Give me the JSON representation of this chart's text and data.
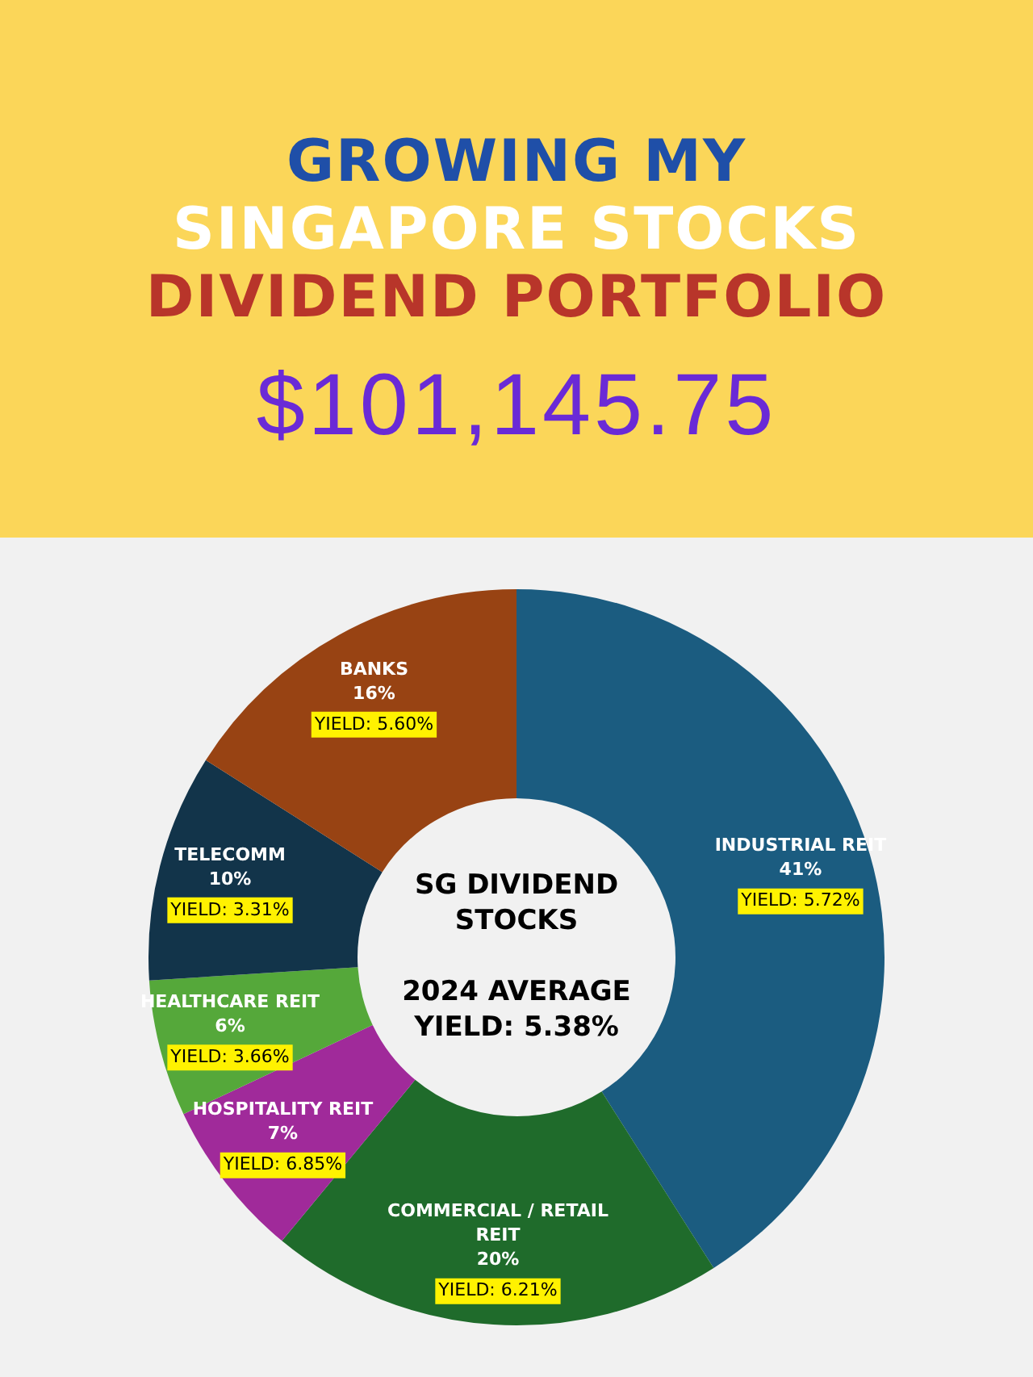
{
  "chart_data": {
    "type": "donut",
    "title": "GROWING MY\nSINGAPORE STOCKS\nDIVIDEND PORTFOLIO",
    "subtitle": "$101,145.75",
    "categories": [
      "INDUSTRIAL REIT",
      "COMMERCIAL / RETAIL REIT",
      "HOSPITALITY REIT",
      "HEALTHCARE REIT",
      "TELECOMM",
      "BANKS"
    ],
    "values": [
      41,
      20,
      7,
      6,
      10,
      16
    ],
    "colors": [
      "#1b5c80",
      "#1f6b2b",
      "#a02a9a",
      "#55a83a",
      "#12344a",
      "#984313"
    ],
    "value_labels": [
      "41%",
      "20%",
      "7%",
      "6%",
      "10%",
      "16%"
    ],
    "annotations": [
      "SG DIVIDEND STOCKS",
      "2024 AVERAGE YIELD: 5.38%",
      {
        "text": "YIELD: 5.72%",
        "x": "INDUSTRIAL REIT"
      },
      {
        "text": "YIELD: 6.21%",
        "x": "COMMERCIAL / RETAIL REIT"
      },
      {
        "text": "YIELD: 6.85%",
        "x": "HOSPITALITY REIT"
      },
      {
        "text": "YIELD: 3.66%",
        "x": "HEALTHCARE REIT"
      },
      {
        "text": "YIELD: 3.31%",
        "x": "TELECOMM"
      },
      {
        "text": "YIELD: 5.60%",
        "x": "BANKS"
      }
    ]
  }
}
